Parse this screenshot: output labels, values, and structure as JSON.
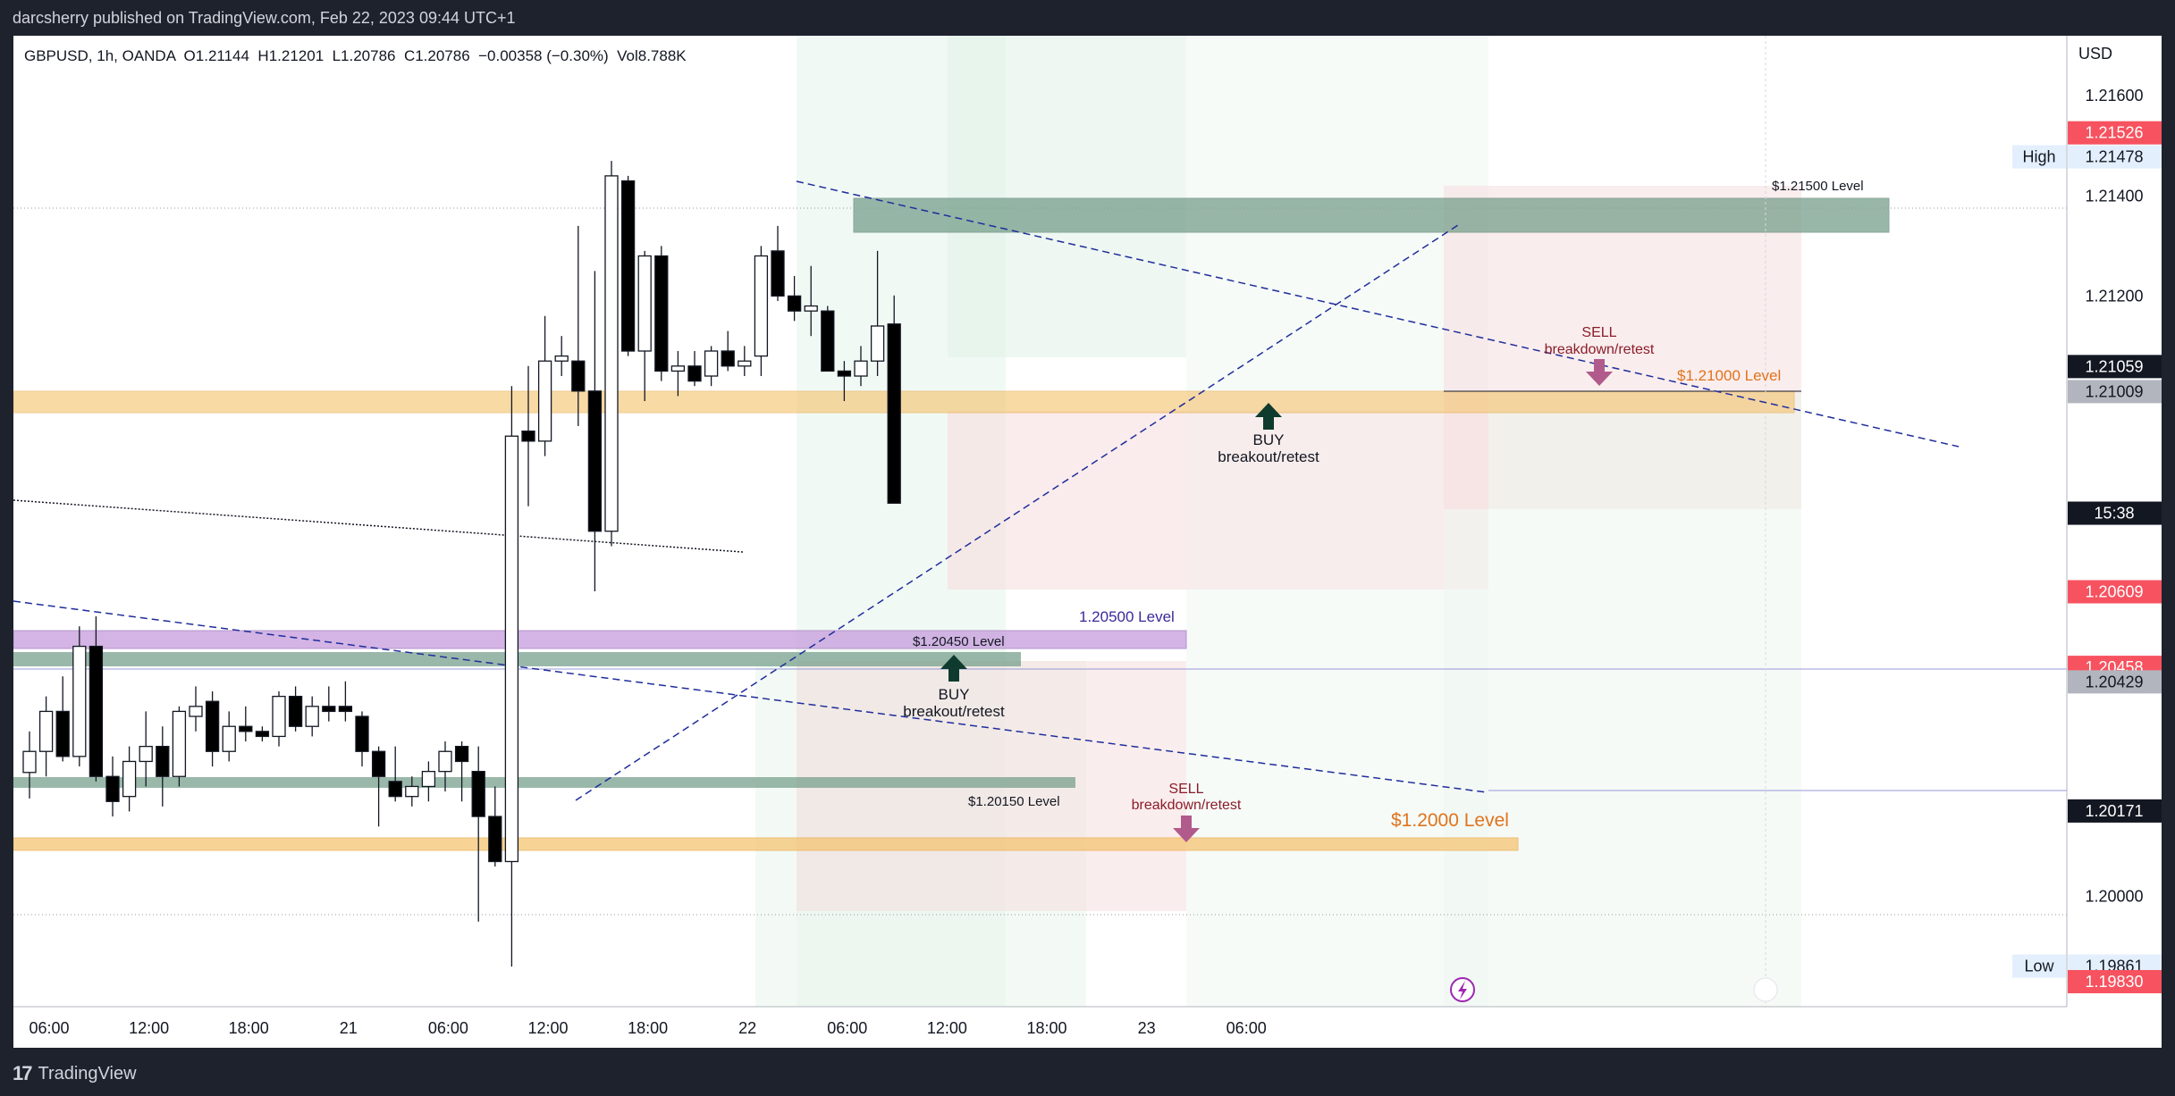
{
  "header": {
    "published_by": "darcsherry published on TradingView.com, Feb 22, 2023 09:44 UTC+1"
  },
  "legend": {
    "text": "GBPUSD, 1h, OANDA  O1.21144  H1.21201  L1.20786  C1.20786  −0.00358 (−0.30%)  Vol8.788K"
  },
  "price_axis": {
    "currency": "USD",
    "ticks": [
      "1.21600",
      "1.21400",
      "1.21200",
      "1.20000"
    ],
    "tags": [
      {
        "label": "",
        "value": "1.21526",
        "price": 1.21526,
        "color": "#f7525f"
      },
      {
        "label": "High",
        "value": "1.21478",
        "price": 1.21478,
        "color": "#e3effd"
      },
      {
        "label": "",
        "value": "1.21059",
        "price": 1.21059,
        "color": "#131722"
      },
      {
        "label": "",
        "value": "1.21009",
        "price": 1.21009,
        "color": "#b2b5be"
      },
      {
        "label": "",
        "value": "15:38",
        "price": 1.20766,
        "color": "#131722"
      },
      {
        "label": "",
        "value": "1.20609",
        "price": 1.20609,
        "color": "#f7525f"
      },
      {
        "label": "",
        "value": "1.20458",
        "price": 1.20458,
        "color": "#f7525f"
      },
      {
        "label": "",
        "value": "1.20429",
        "price": 1.20429,
        "color": "#b2b5be"
      },
      {
        "label": "",
        "value": "1.20171",
        "price": 1.20171,
        "color": "#131722"
      },
      {
        "label": "Low",
        "value": "1.19861",
        "price": 1.19861,
        "color": "#e3effd"
      },
      {
        "label": "",
        "value": "1.19830",
        "price": 1.1983,
        "color": "#f7525f"
      }
    ]
  },
  "time_axis": {
    "ticks": [
      {
        "label": "06:00",
        "bar": 0
      },
      {
        "label": "12:00",
        "bar": 6
      },
      {
        "label": "18:00",
        "bar": 12
      },
      {
        "label": "21",
        "bar": 18
      },
      {
        "label": "06:00",
        "bar": 24
      },
      {
        "label": "12:00",
        "bar": 30
      },
      {
        "label": "18:00",
        "bar": 36
      },
      {
        "label": "22",
        "bar": 42
      },
      {
        "label": "06:00",
        "bar": 48
      },
      {
        "label": "12:00",
        "bar": 54
      },
      {
        "label": "18:00",
        "bar": 60
      },
      {
        "label": "23",
        "bar": 66
      },
      {
        "label": "06:00",
        "bar": 72
      }
    ]
  },
  "annotations": {
    "level_21500": "$1.21500 Level",
    "level_21000": "$1.21000 Level",
    "level_20500": "1.20500 Level",
    "level_20450": "$1.20450 Level",
    "level_20150": "$1.20150 Level",
    "level_20000": "$1.2000 Level",
    "sell_1_a": "SELL",
    "sell_1_b": "breakdown/retest",
    "buy_1_a": "BUY",
    "buy_1_b": "breakout/retest",
    "buy_2_a": "BUY",
    "buy_2_b": "breakout/retest",
    "sell_2_a": "SELL",
    "sell_2_b": "breakdown/retest"
  },
  "footer": {
    "brand": "TradingView"
  },
  "colors": {
    "bull_body": "#ffffff",
    "bear_body": "#000000",
    "trendline": "#1f2d9c",
    "level_orange": "#f5c26b",
    "level_purple": "#c9a2de",
    "level_green": "#6f9a86",
    "sell_arrow": "#b15a8c",
    "buy_arrow": "#0e3b2d",
    "price_axis_bg": "#ffffff"
  },
  "chart_data": {
    "type": "candlestick",
    "symbol": "GBPUSD",
    "interval": "1h",
    "ylim": [
      1.1978,
      1.2172
    ],
    "candles": [
      {
        "o": 1.20248,
        "h": 1.2033,
        "l": 1.20196,
        "c": 1.2029
      },
      {
        "o": 1.2029,
        "h": 1.204,
        "l": 1.2024,
        "c": 1.2037
      },
      {
        "o": 1.2037,
        "h": 1.2044,
        "l": 1.2027,
        "c": 1.2028
      },
      {
        "o": 1.2028,
        "h": 1.2054,
        "l": 1.2026,
        "c": 1.205
      },
      {
        "o": 1.205,
        "h": 1.2056,
        "l": 1.2023,
        "c": 1.2024
      },
      {
        "o": 1.2024,
        "h": 1.2028,
        "l": 1.2016,
        "c": 1.2019
      },
      {
        "o": 1.202,
        "h": 1.203,
        "l": 1.2017,
        "c": 1.2027
      },
      {
        "o": 1.2027,
        "h": 1.2037,
        "l": 1.2022,
        "c": 1.203
      },
      {
        "o": 1.203,
        "h": 1.2034,
        "l": 1.2018,
        "c": 1.2024
      },
      {
        "o": 1.2024,
        "h": 1.2038,
        "l": 1.2022,
        "c": 1.2037
      },
      {
        "o": 1.2036,
        "h": 1.2042,
        "l": 1.2033,
        "c": 1.2038
      },
      {
        "o": 1.2039,
        "h": 1.2041,
        "l": 1.2026,
        "c": 1.2029
      },
      {
        "o": 1.2029,
        "h": 1.2037,
        "l": 1.2027,
        "c": 1.2034
      },
      {
        "o": 1.2034,
        "h": 1.2038,
        "l": 1.2031,
        "c": 1.2033
      },
      {
        "o": 1.2033,
        "h": 1.2034,
        "l": 1.2031,
        "c": 1.2032
      },
      {
        "o": 1.2032,
        "h": 1.2041,
        "l": 1.203,
        "c": 1.204
      },
      {
        "o": 1.204,
        "h": 1.2042,
        "l": 1.2033,
        "c": 1.2034
      },
      {
        "o": 1.2034,
        "h": 1.204,
        "l": 1.2032,
        "c": 1.2038
      },
      {
        "o": 1.2038,
        "h": 1.2042,
        "l": 1.2035,
        "c": 1.2037
      },
      {
        "o": 1.2038,
        "h": 1.2043,
        "l": 1.2035,
        "c": 1.2037
      },
      {
        "o": 1.2036,
        "h": 1.2037,
        "l": 1.2026,
        "c": 1.2029
      },
      {
        "o": 1.2029,
        "h": 1.203,
        "l": 1.2014,
        "c": 1.2024
      },
      {
        "o": 1.2023,
        "h": 1.203,
        "l": 1.2019,
        "c": 1.202
      },
      {
        "o": 1.202,
        "h": 1.2024,
        "l": 1.2018,
        "c": 1.2022
      },
      {
        "o": 1.2022,
        "h": 1.2027,
        "l": 1.2019,
        "c": 1.2025
      },
      {
        "o": 1.2025,
        "h": 1.2031,
        "l": 1.2021,
        "c": 1.2029
      },
      {
        "o": 1.203,
        "h": 1.2031,
        "l": 1.2019,
        "c": 1.2027
      },
      {
        "o": 1.2025,
        "h": 1.203,
        "l": 1.1995,
        "c": 1.2016
      },
      {
        "o": 1.2016,
        "h": 1.2022,
        "l": 1.2006,
        "c": 1.2007
      },
      {
        "o": 1.2007,
        "h": 1.2102,
        "l": 1.1986,
        "c": 1.2092
      },
      {
        "o": 1.2093,
        "h": 1.2106,
        "l": 1.2078,
        "c": 1.2091
      },
      {
        "o": 1.2091,
        "h": 1.2116,
        "l": 1.2088,
        "c": 1.2107
      },
      {
        "o": 1.2107,
        "h": 1.2112,
        "l": 1.2104,
        "c": 1.2108
      },
      {
        "o": 1.2107,
        "h": 1.2134,
        "l": 1.2094,
        "c": 1.2101
      },
      {
        "o": 1.2101,
        "h": 1.2125,
        "l": 1.2061,
        "c": 1.2073
      },
      {
        "o": 1.2073,
        "h": 1.2147,
        "l": 1.207,
        "c": 1.2144
      },
      {
        "o": 1.2143,
        "h": 1.2144,
        "l": 1.2108,
        "c": 1.2109
      },
      {
        "o": 1.2109,
        "h": 1.2129,
        "l": 1.2099,
        "c": 1.2128
      },
      {
        "o": 1.2128,
        "h": 1.213,
        "l": 1.2103,
        "c": 1.2105
      },
      {
        "o": 1.2105,
        "h": 1.2109,
        "l": 1.21,
        "c": 1.2106
      },
      {
        "o": 1.2106,
        "h": 1.2109,
        "l": 1.2102,
        "c": 1.2103
      },
      {
        "o": 1.2104,
        "h": 1.211,
        "l": 1.2102,
        "c": 1.2109
      },
      {
        "o": 1.2109,
        "h": 1.2113,
        "l": 1.2105,
        "c": 1.2106
      },
      {
        "o": 1.2106,
        "h": 1.211,
        "l": 1.2104,
        "c": 1.2107
      },
      {
        "o": 1.2108,
        "h": 1.213,
        "l": 1.2104,
        "c": 1.2128
      },
      {
        "o": 1.2129,
        "h": 1.2134,
        "l": 1.2119,
        "c": 1.212
      },
      {
        "o": 1.212,
        "h": 1.2124,
        "l": 1.2115,
        "c": 1.2117
      },
      {
        "o": 1.2117,
        "h": 1.2126,
        "l": 1.2112,
        "c": 1.2118
      },
      {
        "o": 1.2117,
        "h": 1.2118,
        "l": 1.2105,
        "c": 1.2105
      },
      {
        "o": 1.2105,
        "h": 1.2107,
        "l": 1.2099,
        "c": 1.2104
      },
      {
        "o": 1.2104,
        "h": 1.211,
        "l": 1.2102,
        "c": 1.2107
      },
      {
        "o": 1.2107,
        "h": 1.2129,
        "l": 1.2104,
        "c": 1.2114
      },
      {
        "o": 1.21144,
        "h": 1.21201,
        "l": 1.20786,
        "c": 1.20786
      }
    ],
    "levels": [
      1.215,
      1.21,
      1.205,
      1.2045,
      1.2015,
      1.2
    ]
  }
}
